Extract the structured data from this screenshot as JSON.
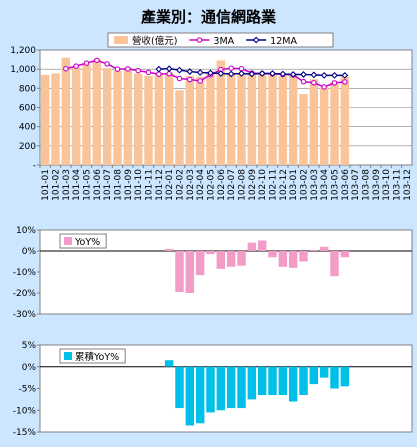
{
  "title": "產業別：通信網路業",
  "chart_data": [
    {
      "type": "bar",
      "categories": [
        "101-01",
        "101-02",
        "101-03",
        "101-04",
        "101-05",
        "101-06",
        "101-07",
        "101-08",
        "101-09",
        "101-10",
        "101-11",
        "101-12",
        "102-01",
        "102-02",
        "102-03",
        "102-04",
        "102-05",
        "102-06",
        "102-07",
        "102-08",
        "102-09",
        "102-10",
        "102-11",
        "102-12",
        "103-01",
        "103-02",
        "103-03",
        "103-04",
        "103-05",
        "103-06",
        "103-07",
        "103-08",
        "103-09",
        "103-10",
        "103-11",
        "103-12"
      ],
      "series": [
        {
          "name": "營收(億元)",
          "type": "bar",
          "color": "#f9c49a",
          "values": [
            940,
            955,
            1120,
            1020,
            1050,
            1105,
            1010,
            985,
            1015,
            955,
            930,
            960,
            965,
            780,
            930,
            920,
            975,
            1090,
            965,
            960,
            950,
            955,
            950,
            930,
            940,
            740,
            895,
            810,
            865,
            925,
            null,
            null,
            null,
            null,
            null,
            null
          ]
        },
        {
          "name": "3MA",
          "type": "line",
          "color": "#cc00cc",
          "marker": "circle",
          "values": [
            null,
            null,
            1005,
            1032,
            1063,
            1092,
            1055,
            1000,
            1003,
            985,
            967,
            948,
            952,
            902,
            892,
            877,
            942,
            995,
            1010,
            1005,
            960,
            955,
            952,
            945,
            940,
            870,
            858,
            815,
            857,
            867,
            null,
            null,
            null,
            null,
            null,
            null
          ]
        },
        {
          "name": "12MA",
          "type": "line",
          "color": "#000080",
          "marker": "diamond",
          "values": [
            null,
            null,
            null,
            null,
            null,
            null,
            null,
            null,
            null,
            null,
            null,
            1000,
            1005,
            990,
            975,
            965,
            960,
            955,
            950,
            955,
            950,
            955,
            955,
            950,
            945,
            945,
            940,
            935,
            935,
            935,
            null,
            null,
            null,
            null,
            null,
            null
          ]
        }
      ],
      "ylim": [
        0,
        1200
      ],
      "yticks": [
        "1,200",
        "1,000",
        "800",
        "600",
        "400",
        "200",
        "-"
      ],
      "grid": true,
      "legend": "top"
    },
    {
      "type": "bar",
      "categories": [
        "101-01",
        "101-02",
        "101-03",
        "101-04",
        "101-05",
        "101-06",
        "101-07",
        "101-08",
        "101-09",
        "101-10",
        "101-11",
        "101-12",
        "102-01",
        "102-02",
        "102-03",
        "102-04",
        "102-05",
        "102-06",
        "102-07",
        "102-08",
        "102-09",
        "102-10",
        "102-11",
        "102-12",
        "103-01",
        "103-02",
        "103-03",
        "103-04",
        "103-05",
        "103-06",
        "103-07",
        "103-08",
        "103-09",
        "103-10",
        "103-11",
        "103-12"
      ],
      "series": [
        {
          "name": "YoY%",
          "color": "#f29cc8",
          "values": [
            null,
            null,
            null,
            null,
            null,
            null,
            null,
            null,
            null,
            null,
            null,
            null,
            1,
            -19.5,
            -20,
            -11.5,
            -1.5,
            -8.5,
            -7.5,
            -7,
            4,
            5,
            -3,
            -7.5,
            -8,
            -5,
            0.5,
            2,
            -12,
            -3,
            null,
            null,
            null,
            null,
            null,
            null
          ]
        }
      ],
      "ylim": [
        -30,
        10
      ],
      "yticks": [
        "10%",
        "0%",
        "-10%",
        "-20%",
        "-30%"
      ],
      "legend": "top-left"
    },
    {
      "type": "bar",
      "categories": [
        "101-01",
        "101-02",
        "101-03",
        "101-04",
        "101-05",
        "101-06",
        "101-07",
        "101-08",
        "101-09",
        "101-10",
        "101-11",
        "101-12",
        "102-01",
        "102-02",
        "102-03",
        "102-04",
        "102-05",
        "102-06",
        "102-07",
        "102-08",
        "102-09",
        "102-10",
        "102-11",
        "102-12",
        "103-01",
        "103-02",
        "103-03",
        "103-04",
        "103-05",
        "103-06",
        "103-07",
        "103-08",
        "103-09",
        "103-10",
        "103-11",
        "103-12"
      ],
      "series": [
        {
          "name": "累積YoY%",
          "color": "#00bfe8",
          "values": [
            null,
            null,
            null,
            null,
            null,
            null,
            null,
            null,
            null,
            null,
            null,
            null,
            1.5,
            -9.5,
            -13.5,
            -13,
            -10.5,
            -10,
            -9.5,
            -9.5,
            -7.5,
            -6.5,
            -6.5,
            -6.5,
            -8,
            -6.5,
            -4,
            -2.5,
            -5,
            -4.5,
            null,
            null,
            null,
            null,
            null,
            null
          ]
        }
      ],
      "ylim": [
        -15,
        5
      ],
      "yticks": [
        "5%",
        "0%",
        "-5%",
        "-10%",
        "-15%"
      ],
      "legend": "top-left"
    }
  ]
}
